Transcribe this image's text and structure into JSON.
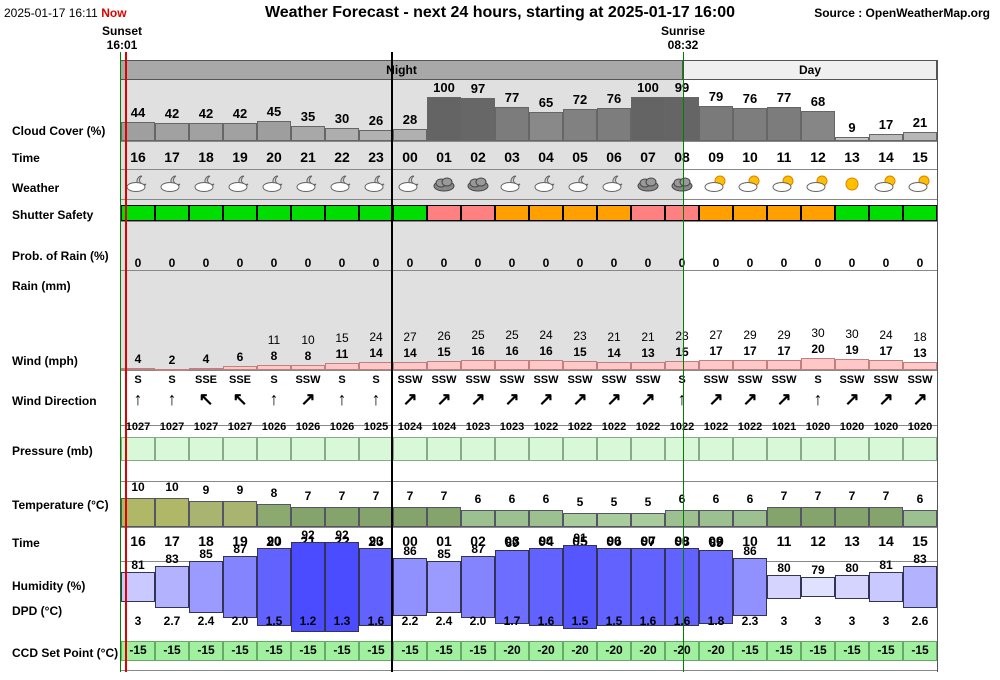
{
  "header": {
    "datetime": "2025-01-17 16:11",
    "now_label": "Now",
    "title": "Weather Forecast - next 24 hours, starting at 2025-01-17 16:00",
    "source": "Source : OpenWeatherMap.org"
  },
  "sun": {
    "sunset_label": "Sunset",
    "sunset_time": "16:01",
    "sunrise_label": "Sunrise",
    "sunrise_time": "08:32"
  },
  "period": {
    "night": "Night",
    "day": "Day"
  },
  "labels": {
    "cloud": "Cloud Cover (%)",
    "time": "Time",
    "weather": "Weather",
    "shutter": "Shutter Safety",
    "prob_rain": "Prob. of Rain (%)",
    "rain": "Rain (mm)",
    "wind": "Wind (mph)",
    "wind_dir": "Wind Direction",
    "pressure": "Pressure (mb)",
    "temperature": "Temperature (°C)",
    "time2": "Time",
    "humidity": "Humidity (%)",
    "dpd": "DPD (°C)",
    "ccd": "CCD Set Point (°C)"
  },
  "hours": [
    "16",
    "17",
    "18",
    "19",
    "20",
    "21",
    "22",
    "23",
    "00",
    "01",
    "02",
    "03",
    "04",
    "05",
    "06",
    "07",
    "08",
    "09",
    "10",
    "11",
    "12",
    "13",
    "14",
    "15"
  ],
  "cloud": [
    44,
    42,
    42,
    42,
    45,
    35,
    30,
    26,
    28,
    100,
    97,
    77,
    65,
    72,
    76,
    100,
    99,
    79,
    76,
    77,
    68,
    9,
    17,
    21
  ],
  "weather_icons": [
    "partly-cloudy-night-icon",
    "partly-cloudy-night-icon",
    "partly-cloudy-night-icon",
    "partly-cloudy-night-icon",
    "partly-cloudy-night-icon",
    "partly-cloudy-night-icon",
    "partly-cloudy-night-icon",
    "partly-cloudy-night-icon",
    "partly-cloudy-night-icon",
    "cloud-icon",
    "cloud-icon",
    "partly-cloudy-night-icon",
    "partly-cloudy-night-icon",
    "partly-cloudy-night-icon",
    "partly-cloudy-night-icon",
    "cloud-icon",
    "cloud-icon",
    "partly-cloudy-day-icon",
    "partly-cloudy-day-icon",
    "partly-cloudy-day-icon",
    "partly-cloudy-day-icon",
    "sun-icon",
    "partly-cloudy-day-icon",
    "partly-cloudy-day-icon"
  ],
  "shutter_colors": [
    "#00dd00",
    "#00dd00",
    "#00dd00",
    "#00dd00",
    "#00dd00",
    "#00dd00",
    "#00dd00",
    "#00dd00",
    "#00dd00",
    "#ff8080",
    "#ff8080",
    "#ffa000",
    "#ffa000",
    "#ffa000",
    "#ffa000",
    "#ff8080",
    "#ff8080",
    "#ffa000",
    "#ffa000",
    "#ffa000",
    "#ffa000",
    "#00dd00",
    "#00dd00",
    "#00dd00"
  ],
  "prob_rain": [
    "0",
    "0",
    "0",
    "0",
    "0",
    "0",
    "0",
    "0",
    "0",
    "0",
    "0",
    "0",
    "0",
    "0",
    "0",
    "0",
    "0",
    "0",
    "0",
    "0",
    "0",
    "0",
    "0",
    "0"
  ],
  "wind_gust": [
    "",
    "",
    "",
    "",
    "11",
    "10",
    "15",
    "24",
    "27",
    "26",
    "25",
    "25",
    "24",
    "23",
    "21",
    "21",
    "23",
    "27",
    "29",
    "29",
    "30",
    "30",
    "24",
    "18"
  ],
  "wind": [
    4,
    2,
    4,
    6,
    8,
    8,
    11,
    14,
    14,
    15,
    16,
    16,
    16,
    15,
    14,
    13,
    15,
    17,
    17,
    17,
    20,
    19,
    17,
    13
  ],
  "wind_dir": [
    "S",
    "S",
    "SSE",
    "SSE",
    "S",
    "SSW",
    "S",
    "S",
    "SSW",
    "SSW",
    "SSW",
    "SSW",
    "SSW",
    "SSW",
    "SSW",
    "SSW",
    "S",
    "SSW",
    "SSW",
    "SSW",
    "S",
    "SSW",
    "SSW",
    "SSW"
  ],
  "wind_arrow": [
    "↑",
    "↑",
    "↖",
    "↖",
    "↑",
    "↗",
    "↑",
    "↑",
    "↗",
    "↗",
    "↗",
    "↗",
    "↗",
    "↗",
    "↗",
    "↗",
    "↑",
    "↗",
    "↗",
    "↗",
    "↑",
    "↗",
    "↗",
    "↗"
  ],
  "pressure": [
    "1027",
    "1027",
    "1027",
    "1027",
    "1026",
    "1026",
    "1026",
    "1025",
    "1024",
    "1024",
    "1023",
    "1023",
    "1022",
    "1022",
    "1022",
    "1022",
    "1022",
    "1022",
    "1022",
    "1021",
    "1020",
    "1020",
    "1020",
    "1020"
  ],
  "temperature": [
    10,
    10,
    9,
    9,
    8,
    7,
    7,
    7,
    7,
    7,
    6,
    6,
    6,
    5,
    5,
    5,
    6,
    6,
    6,
    7,
    7,
    7,
    7,
    6
  ],
  "humidity": [
    81,
    83,
    85,
    87,
    90,
    92,
    92,
    90,
    86,
    85,
    87,
    89,
    90,
    91,
    90,
    90,
    90,
    89,
    86,
    80,
    79,
    80,
    81,
    83
  ],
  "dpd": [
    "3",
    "2.7",
    "2.4",
    "2.0",
    "1.5",
    "1.2",
    "1.3",
    "1.6",
    "2.2",
    "2.4",
    "2.0",
    "1.7",
    "1.6",
    "1.5",
    "1.5",
    "1.6",
    "1.6",
    "1.8",
    "2.3",
    "3",
    "3",
    "3",
    "3",
    "2.6"
  ],
  "ccd": [
    "-15",
    "-15",
    "-15",
    "-15",
    "-15",
    "-15",
    "-15",
    "-15",
    "-15",
    "-15",
    "-15",
    "-20",
    "-20",
    "-20",
    "-20",
    "-20",
    "-20",
    "-20",
    "-15",
    "-15",
    "-15",
    "-15",
    "-15",
    "-15"
  ],
  "colors": {
    "night_bg": "#e0e0e0",
    "now_line": "#e00000",
    "midnight_line": "#000000",
    "sunrise_line": "#008000",
    "wind_bar": "#ffc8c8",
    "pressure_box": "#d8f8d8",
    "ccd_box": "#a0f0a0"
  }
}
